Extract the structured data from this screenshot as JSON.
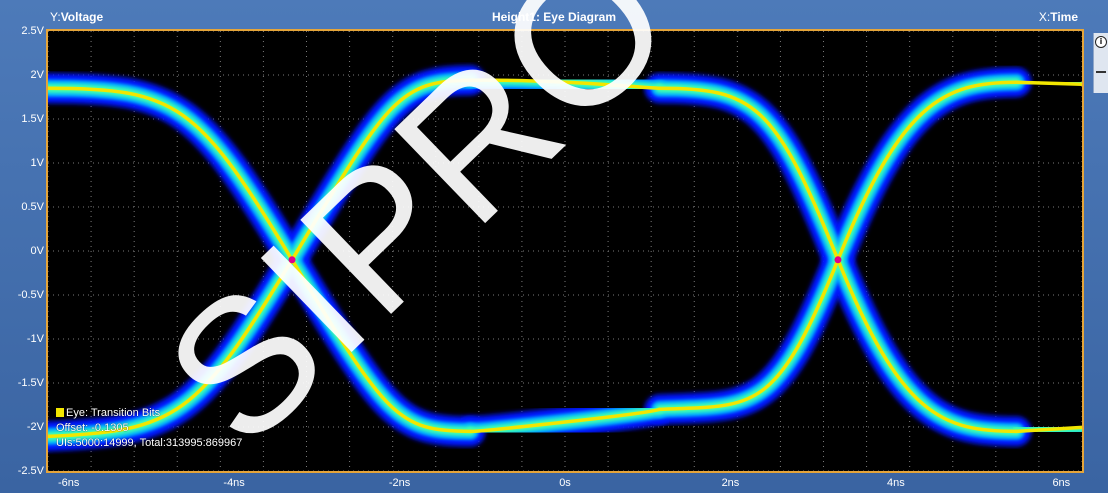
{
  "header": {
    "y_axis_prefix": "Y:",
    "y_axis_name": "Voltage",
    "plot_title": "Height1: Eye Diagram",
    "x_axis_prefix": "X:",
    "x_axis_name": "Time"
  },
  "annotation": {
    "legend_label": "Eye: Transition Bits",
    "offset_line": "Offset: -0.1305",
    "stats_line": "UIs:5000:14999, Total:313995:869967"
  },
  "watermark": "SIPRO",
  "colors": {
    "frame_border": "#e5a53a",
    "background": "#3f6aa8",
    "density_low": "#0010ff",
    "density_mid": "#00c8ff",
    "density_high": "#f2e600",
    "crossing_marker": "#e0008a"
  },
  "chart_data": {
    "type": "eye-diagram",
    "xlabel": "Time",
    "ylabel": "Voltage",
    "x_ticks": [
      "-6ns",
      "-4ns",
      "-2ns",
      "0s",
      "2ns",
      "4ns",
      "6ns"
    ],
    "x_tick_values_ns": [
      -6,
      -4,
      -2,
      0,
      2,
      4,
      6
    ],
    "y_ticks": [
      "2.5V",
      "2V",
      "1.5V",
      "1V",
      "0.5V",
      "0V",
      "-0.5V",
      "-1V",
      "-1.5V",
      "-2V",
      "-2.5V"
    ],
    "y_tick_values_v": [
      2.5,
      2,
      1.5,
      1,
      0.5,
      0,
      -0.5,
      -1,
      -1.5,
      -2,
      -2.5
    ],
    "xlim_ns": [
      -6.25,
      6.25
    ],
    "ylim_v": [
      -2.5,
      2.5
    ],
    "high_level_v": 1.85,
    "low_level_v": -2.05,
    "crossing_points": [
      {
        "t_ns": -3.3,
        "v": -0.1
      },
      {
        "t_ns": 3.3,
        "v": -0.1
      }
    ],
    "grid": true
  }
}
